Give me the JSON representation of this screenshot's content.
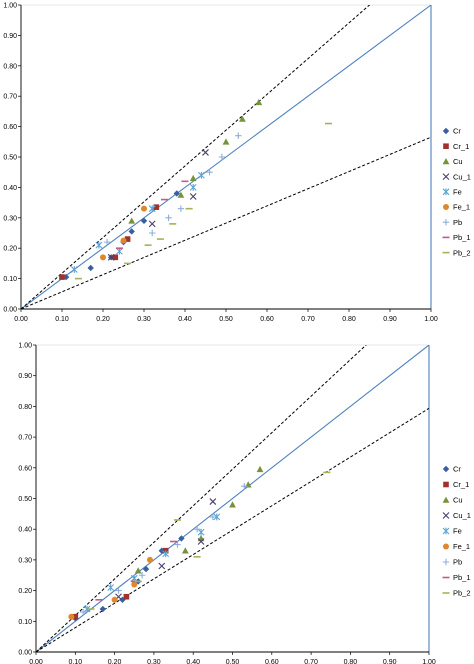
{
  "chart_data": [
    {
      "type": "scatter",
      "title": "",
      "xlabel": "",
      "ylabel": "",
      "xlim": [
        0,
        1
      ],
      "ylim": [
        0,
        1
      ],
      "x_ticks": [
        "0.00",
        "0.10",
        "0.20",
        "0.30",
        "0.40",
        "0.50",
        "0.60",
        "0.70",
        "0.80",
        "0.90",
        "1.00"
      ],
      "y_ticks": [
        "0.00",
        "0.10",
        "0.20",
        "0.30",
        "0.40",
        "0.50",
        "0.60",
        "0.70",
        "0.80",
        "0.90",
        "1.00"
      ],
      "grid": false,
      "legend_position": "right",
      "reference_lines": [
        {
          "style": "solid",
          "color": "#4f81bd",
          "slope": 1.0
        },
        {
          "style": "dashed",
          "color": "#000000",
          "slope": 1.1765
        },
        {
          "style": "dashed",
          "color": "#000000",
          "slope": 0.5652
        }
      ],
      "series": [
        {
          "name": "Cr",
          "marker": "diamond",
          "color": "#3a5fa0",
          "points": [
            [
              0.11,
              0.105
            ],
            [
              0.17,
              0.135
            ],
            [
              0.22,
              0.17
            ],
            [
              0.25,
              0.22
            ],
            [
              0.27,
              0.255
            ],
            [
              0.3,
              0.29
            ],
            [
              0.38,
              0.38
            ]
          ]
        },
        {
          "name": "Cr_1",
          "marker": "square",
          "color": "#a0322d",
          "points": [
            [
              0.1,
              0.105
            ],
            [
              0.23,
              0.17
            ],
            [
              0.26,
              0.23
            ],
            [
              0.33,
              0.335
            ]
          ]
        },
        {
          "name": "Cu",
          "marker": "triangle",
          "color": "#76923c",
          "points": [
            [
              0.27,
              0.29
            ],
            [
              0.39,
              0.375
            ],
            [
              0.42,
              0.43
            ],
            [
              0.5,
              0.55
            ],
            [
              0.54,
              0.625
            ],
            [
              0.58,
              0.68
            ]
          ]
        },
        {
          "name": "Cu_1",
          "marker": "x",
          "color": "#4b3e6e",
          "points": [
            [
              0.22,
              0.17
            ],
            [
              0.32,
              0.28
            ],
            [
              0.42,
              0.37
            ],
            [
              0.45,
              0.515
            ]
          ]
        },
        {
          "name": "Fe",
          "marker": "asterisk",
          "color": "#5ba4d4",
          "points": [
            [
              0.13,
              0.13
            ],
            [
              0.19,
              0.21
            ],
            [
              0.24,
              0.19
            ],
            [
              0.32,
              0.33
            ],
            [
              0.42,
              0.4
            ],
            [
              0.44,
              0.44
            ]
          ]
        },
        {
          "name": "Fe_1",
          "marker": "circle",
          "color": "#e0862d",
          "points": [
            [
              0.2,
              0.17
            ],
            [
              0.25,
              0.225
            ],
            [
              0.3,
              0.33
            ]
          ]
        },
        {
          "name": "Pb",
          "marker": "plus",
          "color": "#8faed9",
          "points": [
            [
              0.21,
              0.22
            ],
            [
              0.32,
              0.25
            ],
            [
              0.36,
              0.3
            ],
            [
              0.39,
              0.33
            ],
            [
              0.46,
              0.45
            ],
            [
              0.49,
              0.5
            ],
            [
              0.53,
              0.57
            ]
          ]
        },
        {
          "name": "Pb_1",
          "marker": "dash",
          "color": "#c25a8c",
          "points": [
            [
              0.24,
              0.2
            ],
            [
              0.35,
              0.36
            ],
            [
              0.4,
              0.42
            ]
          ]
        },
        {
          "name": "Pb_2",
          "marker": "dash",
          "color": "#a5b255",
          "points": [
            [
              0.14,
              0.1
            ],
            [
              0.26,
              0.15
            ],
            [
              0.31,
              0.21
            ],
            [
              0.34,
              0.23
            ],
            [
              0.37,
              0.28
            ],
            [
              0.41,
              0.33
            ],
            [
              0.75,
              0.61
            ]
          ]
        }
      ]
    },
    {
      "type": "scatter",
      "title": "",
      "xlabel": "",
      "ylabel": "",
      "xlim": [
        0,
        1
      ],
      "ylim": [
        0,
        1
      ],
      "x_ticks": [
        "0.00",
        "0.10",
        "0.20",
        "0.30",
        "0.40",
        "0.50",
        "0.60",
        "0.70",
        "0.80",
        "0.90",
        "1.00"
      ],
      "y_ticks": [
        "0.00",
        "0.10",
        "0.20",
        "0.30",
        "0.40",
        "0.50",
        "0.60",
        "0.70",
        "0.80",
        "0.90",
        "1.00"
      ],
      "grid": false,
      "legend_position": "right",
      "reference_lines": [
        {
          "style": "solid",
          "color": "#4f81bd",
          "slope": 1.0
        },
        {
          "style": "dashed",
          "color": "#000000",
          "slope": 1.1905
        },
        {
          "style": "dashed",
          "color": "#000000",
          "slope": 0.7937
        }
      ],
      "series": [
        {
          "name": "Cr",
          "marker": "diamond",
          "color": "#3a5fa0",
          "points": [
            [
              0.1,
              0.11
            ],
            [
              0.17,
              0.14
            ],
            [
              0.22,
              0.17
            ],
            [
              0.26,
              0.23
            ],
            [
              0.28,
              0.27
            ],
            [
              0.32,
              0.33
            ],
            [
              0.37,
              0.37
            ]
          ]
        },
        {
          "name": "Cr_1",
          "marker": "square",
          "color": "#a0322d",
          "points": [
            [
              0.1,
              0.115
            ],
            [
              0.23,
              0.18
            ],
            [
              0.33,
              0.33
            ]
          ]
        },
        {
          "name": "Cu",
          "marker": "triangle",
          "color": "#76923c",
          "points": [
            [
              0.26,
              0.265
            ],
            [
              0.38,
              0.33
            ],
            [
              0.42,
              0.37
            ],
            [
              0.5,
              0.48
            ],
            [
              0.54,
              0.545
            ],
            [
              0.57,
              0.595
            ]
          ]
        },
        {
          "name": "Cu_1",
          "marker": "x",
          "color": "#4b3e6e",
          "points": [
            [
              0.21,
              0.18
            ],
            [
              0.32,
              0.28
            ],
            [
              0.42,
              0.36
            ],
            [
              0.45,
              0.49
            ]
          ]
        },
        {
          "name": "Fe",
          "marker": "asterisk",
          "color": "#5ba4d4",
          "points": [
            [
              0.13,
              0.14
            ],
            [
              0.19,
              0.21
            ],
            [
              0.25,
              0.24
            ],
            [
              0.33,
              0.32
            ],
            [
              0.42,
              0.39
            ],
            [
              0.46,
              0.44
            ]
          ]
        },
        {
          "name": "Fe_1",
          "marker": "circle",
          "color": "#e0862d",
          "points": [
            [
              0.09,
              0.115
            ],
            [
              0.2,
              0.17
            ],
            [
              0.25,
              0.22
            ],
            [
              0.29,
              0.3
            ]
          ]
        },
        {
          "name": "Pb",
          "marker": "plus",
          "color": "#8faed9",
          "points": [
            [
              0.12,
              0.13
            ],
            [
              0.21,
              0.2
            ],
            [
              0.27,
              0.25
            ],
            [
              0.36,
              0.35
            ],
            [
              0.41,
              0.4
            ],
            [
              0.45,
              0.44
            ],
            [
              0.53,
              0.54
            ]
          ]
        },
        {
          "name": "Pb_1",
          "marker": "dash",
          "color": "#c25a8c",
          "points": [
            [
              0.16,
              0.17
            ],
            [
              0.25,
              0.23
            ],
            [
              0.35,
              0.36
            ]
          ]
        },
        {
          "name": "Pb_2",
          "marker": "dash",
          "color": "#a5b255",
          "points": [
            [
              0.14,
              0.14
            ],
            [
              0.26,
              0.23
            ],
            [
              0.36,
              0.43
            ],
            [
              0.41,
              0.31
            ],
            [
              0.74,
              0.585
            ]
          ]
        }
      ]
    }
  ]
}
